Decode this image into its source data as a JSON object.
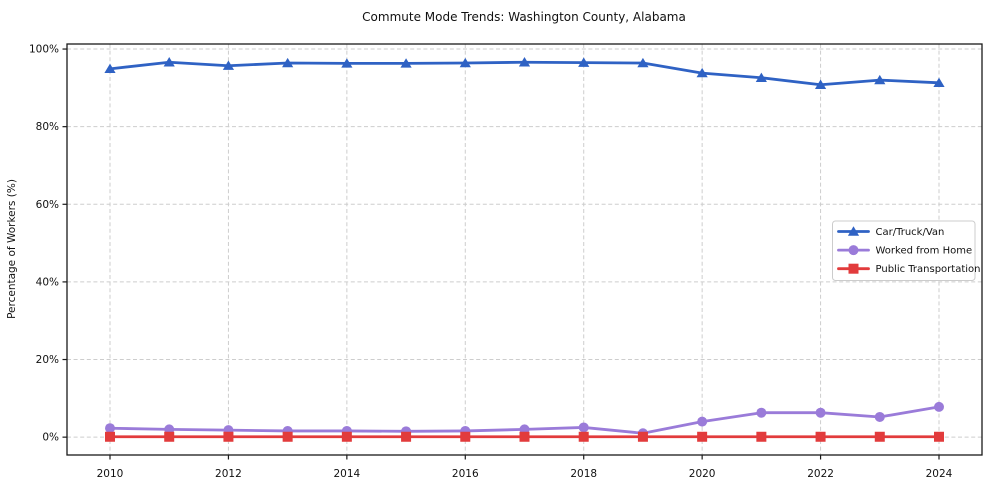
{
  "chart_data": {
    "type": "line",
    "title": "Commute Mode Trends: Washington County, Alabama",
    "xlabel": "",
    "ylabel": "Percentage of Workers (%)",
    "categories": [
      2010,
      2011,
      2012,
      2013,
      2014,
      2015,
      2016,
      2017,
      2018,
      2019,
      2020,
      2021,
      2022,
      2023,
      2024
    ],
    "xticks": [
      2010,
      2012,
      2014,
      2016,
      2018,
      2020,
      2022,
      2024
    ],
    "yticks": [
      0,
      20,
      40,
      60,
      80,
      100
    ],
    "ytick_labels": [
      "0%",
      "20%",
      "40%",
      "60%",
      "80%",
      "100%"
    ],
    "ylim": [
      -4.6,
      101.3
    ],
    "grid": true,
    "grid_style": "dashed",
    "legend_position": "center-right",
    "series": [
      {
        "name": "Car/Truck/Van",
        "color": "#2f62c4",
        "marker": "triangle",
        "values": [
          94.9,
          96.6,
          95.7,
          96.4,
          96.3,
          96.3,
          96.4,
          96.6,
          96.5,
          96.4,
          93.8,
          92.6,
          90.8,
          92.0,
          91.3
        ]
      },
      {
        "name": "Worked from Home",
        "color": "#9a7bd9",
        "marker": "circle",
        "values": [
          2.3,
          2.0,
          1.8,
          1.6,
          1.6,
          1.5,
          1.6,
          2.0,
          2.5,
          1.0,
          4.0,
          6.3,
          6.3,
          5.2,
          7.8
        ]
      },
      {
        "name": "Public Transportation",
        "color": "#e23b3c",
        "marker": "square",
        "values": [
          0.1,
          0.1,
          0.1,
          0.1,
          0.1,
          0.1,
          0.1,
          0.1,
          0.1,
          0.1,
          0.1,
          0.1,
          0.1,
          0.1,
          0.1
        ]
      }
    ],
    "colors": {
      "grid": "#cdcdcd",
      "axis_frame": "#1a1a1a",
      "background": "#ffffff",
      "legend_border": "#cccccc"
    }
  }
}
